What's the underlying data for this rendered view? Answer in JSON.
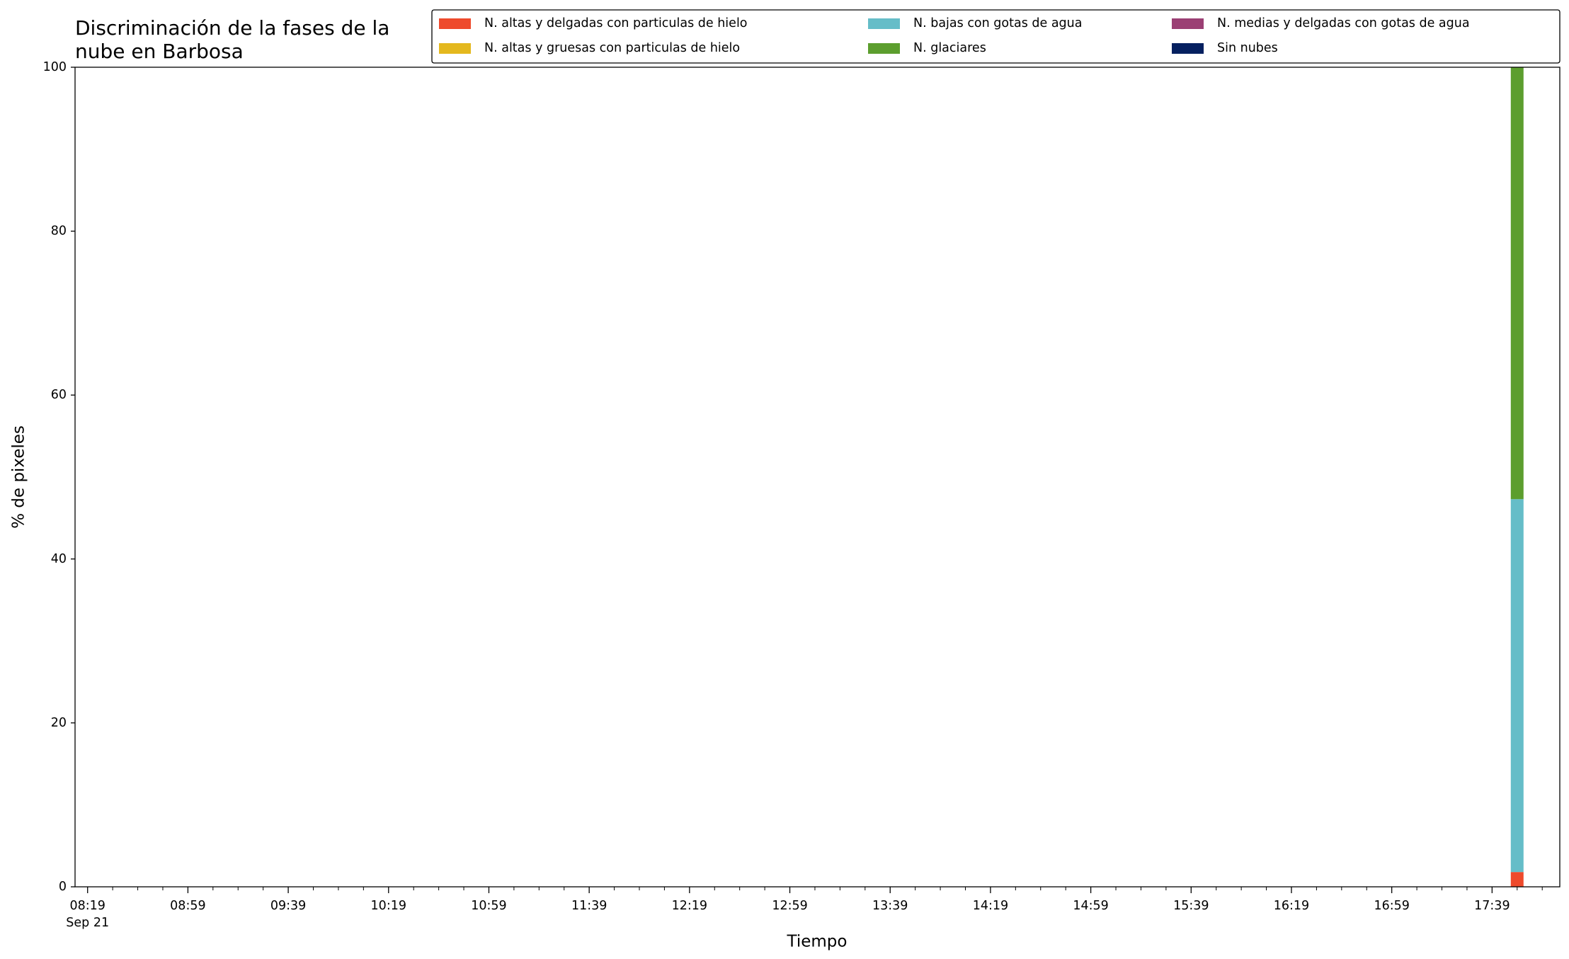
{
  "chart_data": {
    "type": "stacked_bar",
    "title": "Discriminación de la fases de la\nnube en Barbosa",
    "xlabel": "Tiempo",
    "ylabel": "% de pixeles",
    "x": [
      "17:49"
    ],
    "xdate": "Sep 21",
    "xlim": [
      "08:14",
      "18:06"
    ],
    "xticks": [
      "08:19",
      "08:59",
      "09:39",
      "10:19",
      "10:59",
      "11:39",
      "12:19",
      "12:59",
      "13:39",
      "14:19",
      "14:59",
      "15:39",
      "16:19",
      "16:59",
      "17:39"
    ],
    "ylim": [
      0,
      100
    ],
    "yticks": [
      0,
      20,
      40,
      60,
      80,
      100
    ],
    "legend": "upper right",
    "series": [
      {
        "name": "N. altas y delgadas con particulas de hielo",
        "color": "#ee4a2c",
        "values": [
          1.8
        ]
      },
      {
        "name": "N. altas y gruesas con particulas de hielo",
        "color": "#e4b81e",
        "values": [
          0
        ]
      },
      {
        "name": "N. bajas con gotas de agua",
        "color": "#65bdc8",
        "values": [
          45.5
        ]
      },
      {
        "name": "N. glaciares",
        "color": "#5c9e2e",
        "values": [
          52.7
        ]
      },
      {
        "name": "N. medias y delgadas con gotas de agua",
        "color": "#9b3f74",
        "values": [
          0
        ]
      },
      {
        "name": "Sin nubes",
        "color": "#052060",
        "values": [
          0
        ]
      }
    ]
  }
}
